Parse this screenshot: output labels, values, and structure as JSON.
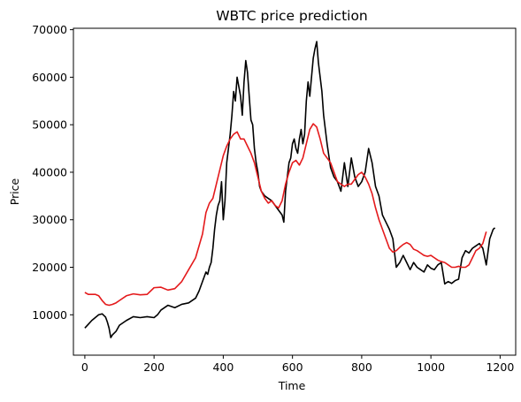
{
  "chart_data": {
    "type": "line",
    "title": "WBTC price prediction",
    "xlabel": "Time",
    "ylabel": "Price",
    "xlim": [
      -33,
      1245
    ],
    "ylim": [
      1500,
      70300
    ],
    "xticks": [
      0,
      200,
      400,
      600,
      800,
      1000,
      1200
    ],
    "yticks": [
      10000,
      20000,
      30000,
      40000,
      50000,
      60000,
      70000
    ],
    "grid": false,
    "legend": "none",
    "series": [
      {
        "name": "",
        "color": "#000000",
        "x": [
          0,
          10,
          20,
          30,
          40,
          50,
          60,
          65,
          70,
          75,
          80,
          90,
          100,
          120,
          140,
          160,
          180,
          200,
          210,
          220,
          240,
          260,
          280,
          300,
          320,
          330,
          340,
          350,
          355,
          360,
          365,
          370,
          375,
          380,
          385,
          390,
          395,
          400,
          405,
          410,
          415,
          420,
          425,
          430,
          435,
          440,
          445,
          450,
          455,
          460,
          465,
          470,
          475,
          480,
          485,
          490,
          495,
          500,
          505,
          510,
          520,
          530,
          540,
          550,
          560,
          570,
          575,
          580,
          585,
          590,
          595,
          600,
          605,
          610,
          615,
          620,
          625,
          630,
          635,
          640,
          645,
          650,
          655,
          660,
          665,
          670,
          675,
          680,
          685,
          690,
          700,
          710,
          720,
          730,
          740,
          750,
          760,
          770,
          780,
          790,
          800,
          810,
          820,
          830,
          840,
          850,
          860,
          870,
          880,
          890,
          900,
          910,
          920,
          930,
          940,
          950,
          960,
          970,
          980,
          990,
          1000,
          1010,
          1020,
          1030,
          1040,
          1050,
          1060,
          1070,
          1080,
          1090,
          1100,
          1110,
          1120,
          1130,
          1140,
          1150,
          1160,
          1170,
          1180,
          1185
        ],
        "y": [
          7200,
          8000,
          8800,
          9400,
          10000,
          10200,
          9500,
          8500,
          7200,
          5200,
          5800,
          6500,
          7800,
          8800,
          9600,
          9400,
          9600,
          9400,
          10000,
          11000,
          12000,
          11500,
          12200,
          12500,
          13500,
          15000,
          17000,
          19000,
          18500,
          20000,
          21000,
          24000,
          28000,
          31000,
          33000,
          34000,
          38000,
          30000,
          34000,
          42000,
          45000,
          48000,
          52000,
          57000,
          55000,
          60000,
          58000,
          56000,
          52000,
          59000,
          63500,
          61000,
          56000,
          51000,
          50000,
          45000,
          42000,
          40000,
          37000,
          36000,
          35000,
          34500,
          34000,
          33000,
          32000,
          31000,
          29500,
          36000,
          39000,
          42000,
          43000,
          46000,
          47000,
          45000,
          44000,
          47000,
          49000,
          46000,
          48000,
          55000,
          59000,
          56000,
          60000,
          64000,
          66000,
          67500,
          63000,
          60000,
          57000,
          52000,
          46000,
          41000,
          39000,
          38000,
          36000,
          42000,
          37000,
          43000,
          39000,
          37000,
          38000,
          40000,
          45000,
          42000,
          37000,
          35000,
          31000,
          29500,
          28000,
          26000,
          20000,
          21000,
          22500,
          21000,
          19500,
          21000,
          20000,
          19500,
          19000,
          20500,
          19800,
          19500,
          20500,
          21000,
          16500,
          17000,
          16600,
          17200,
          17500,
          22000,
          23500,
          23000,
          24000,
          24500,
          25000,
          24000,
          20500,
          26000,
          28000,
          28300
        ]
      },
      {
        "name": "",
        "color": "#e41a1c",
        "x": [
          0,
          10,
          20,
          30,
          40,
          50,
          60,
          70,
          80,
          90,
          100,
          120,
          140,
          160,
          180,
          200,
          220,
          240,
          260,
          280,
          300,
          320,
          340,
          350,
          360,
          370,
          380,
          390,
          400,
          410,
          420,
          430,
          440,
          450,
          460,
          470,
          480,
          490,
          500,
          510,
          520,
          530,
          540,
          550,
          560,
          570,
          580,
          590,
          600,
          610,
          620,
          630,
          640,
          650,
          660,
          670,
          680,
          690,
          700,
          710,
          720,
          730,
          740,
          750,
          760,
          770,
          780,
          790,
          800,
          810,
          820,
          830,
          840,
          850,
          860,
          870,
          880,
          890,
          900,
          910,
          920,
          930,
          940,
          950,
          960,
          970,
          980,
          990,
          1000,
          1010,
          1020,
          1030,
          1040,
          1050,
          1060,
          1070,
          1080,
          1090,
          1100,
          1110,
          1120,
          1130,
          1140,
          1150,
          1160
        ],
        "y": [
          14700,
          14300,
          14300,
          14300,
          14000,
          13000,
          12200,
          12000,
          12200,
          12500,
          13000,
          14000,
          14400,
          14200,
          14300,
          15700,
          15800,
          15200,
          15500,
          17000,
          19500,
          22000,
          27000,
          31500,
          33500,
          34500,
          37500,
          40500,
          43500,
          45500,
          47000,
          48000,
          48500,
          47000,
          47000,
          45500,
          44000,
          42000,
          39000,
          36000,
          34500,
          33500,
          34000,
          33000,
          32500,
          34000,
          37500,
          40000,
          42000,
          42500,
          41500,
          43000,
          46000,
          49000,
          50200,
          49500,
          47000,
          44000,
          43000,
          42000,
          40000,
          38000,
          37500,
          37000,
          37500,
          37500,
          38500,
          39500,
          40000,
          39000,
          37500,
          35500,
          32500,
          30000,
          28000,
          26000,
          24000,
          23200,
          23500,
          24200,
          24800,
          25200,
          24800,
          23800,
          23500,
          23000,
          22500,
          22300,
          22500,
          22000,
          21500,
          21200,
          21000,
          20500,
          20000,
          20000,
          20200,
          20000,
          20000,
          20500,
          22000,
          23500,
          24000,
          25000,
          27500
        ]
      }
    ]
  }
}
